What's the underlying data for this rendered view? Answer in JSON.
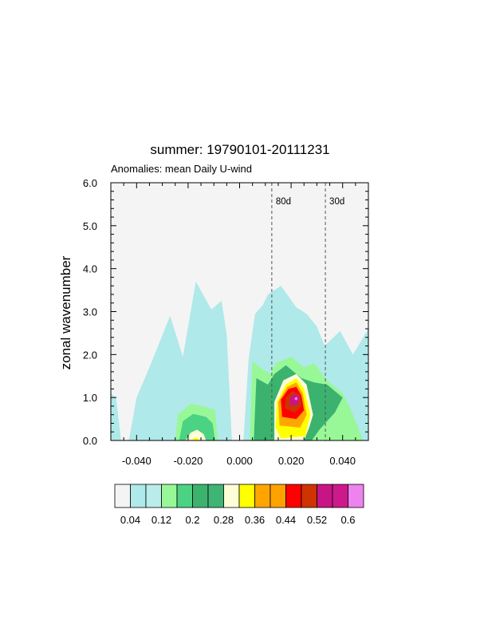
{
  "chart_data": {
    "type": "heatmap",
    "title": "summer: 19790101-20111231",
    "subtitle": "Anomalies: mean Daily U-wind",
    "xlabel": "",
    "ylabel": "zonal wavenumber",
    "xlim": [
      -0.05,
      0.05
    ],
    "ylim": [
      0,
      6
    ],
    "x_ticks": [
      {
        "value": -0.04,
        "label": "-0.040"
      },
      {
        "value": -0.02,
        "label": "-0.020"
      },
      {
        "value": 0.0,
        "label": "0.000"
      },
      {
        "value": 0.02,
        "label": "0.020"
      },
      {
        "value": 0.04,
        "label": "0.040"
      }
    ],
    "y_ticks": [
      {
        "value": 0,
        "label": "0.0"
      },
      {
        "value": 1,
        "label": "1.0"
      },
      {
        "value": 2,
        "label": "2.0"
      },
      {
        "value": 3,
        "label": "3.0"
      },
      {
        "value": 4,
        "label": "4.0"
      },
      {
        "value": 5,
        "label": "5.0"
      },
      {
        "value": 6,
        "label": "6.0"
      }
    ],
    "background_color": "#f4f4f4",
    "period_lines": [
      {
        "label": "80d",
        "frequency": 0.0125
      },
      {
        "label": "30d",
        "frequency": 0.0333
      }
    ],
    "contour_levels": [
      0.04,
      0.08,
      0.12,
      0.16,
      0.2,
      0.24,
      0.28,
      0.32,
      0.36,
      0.4,
      0.44,
      0.48,
      0.52,
      0.56,
      0.6
    ],
    "colorbar": {
      "colors": [
        "#f4f4f4",
        "#afe9e9",
        "#b9eceb",
        "#98f898",
        "#4bd283",
        "#3bb36f",
        "#3fb474",
        "#fdfed7",
        "#ffff00",
        "#ffa500",
        "#ffa200",
        "#ff0000",
        "#cf3300",
        "#c71585",
        "#cd1a8b",
        "#ee82ee"
      ],
      "labels": [
        {
          "after_index": 0,
          "text": "0.04"
        },
        {
          "after_index": 2,
          "text": "0.12"
        },
        {
          "after_index": 4,
          "text": "0.2"
        },
        {
          "after_index": 6,
          "text": "0.28"
        },
        {
          "after_index": 8,
          "text": "0.36"
        },
        {
          "after_index": 10,
          "text": "0.44"
        },
        {
          "after_index": 12,
          "text": "0.52"
        },
        {
          "after_index": 14,
          "text": "0.6"
        }
      ]
    },
    "regions": [
      {
        "level": 1,
        "points": [
          [
            -0.05,
            1.1
          ],
          [
            -0.048,
            1.0
          ],
          [
            -0.046,
            0.0
          ],
          [
            -0.05,
            0.0
          ]
        ]
      },
      {
        "level": 1,
        "points": [
          [
            -0.043,
            0.0
          ],
          [
            -0.04,
            1.0
          ],
          [
            -0.035,
            1.7
          ],
          [
            -0.031,
            2.3
          ],
          [
            -0.027,
            2.9
          ],
          [
            -0.022,
            1.95
          ],
          [
            -0.017,
            3.7
          ],
          [
            -0.011,
            3.05
          ],
          [
            -0.007,
            3.25
          ],
          [
            -0.005,
            2.45
          ],
          [
            -0.003,
            0.0
          ]
        ]
      },
      {
        "level": 1,
        "points": [
          [
            0.0015,
            0.0
          ],
          [
            0.0035,
            1.9
          ],
          [
            0.006,
            2.95
          ],
          [
            0.009,
            3.15
          ],
          [
            0.011,
            3.4
          ],
          [
            0.016,
            3.6
          ],
          [
            0.022,
            3.1
          ],
          [
            0.026,
            2.95
          ],
          [
            0.03,
            2.65
          ],
          [
            0.033,
            2.2
          ],
          [
            0.039,
            2.55
          ],
          [
            0.044,
            2.0
          ],
          [
            0.05,
            2.6
          ],
          [
            0.05,
            0.0
          ]
        ]
      },
      {
        "level": 3,
        "points": [
          [
            -0.025,
            0.0
          ],
          [
            -0.024,
            0.6
          ],
          [
            -0.019,
            0.85
          ],
          [
            -0.014,
            0.8
          ],
          [
            -0.0095,
            0.7
          ],
          [
            -0.0085,
            0.0
          ]
        ]
      },
      {
        "level": 4,
        "points": [
          [
            -0.0235,
            0.0
          ],
          [
            -0.022,
            0.45
          ],
          [
            -0.018,
            0.62
          ],
          [
            -0.013,
            0.55
          ],
          [
            -0.0105,
            0.4
          ],
          [
            -0.0095,
            0.0
          ]
        ]
      },
      {
        "level": 7,
        "points": [
          [
            -0.021,
            0.0
          ],
          [
            -0.019,
            0.18
          ],
          [
            -0.0165,
            0.25
          ],
          [
            -0.014,
            0.15
          ],
          [
            -0.013,
            0.0
          ]
        ]
      },
      {
        "level": 8,
        "points": [
          [
            -0.0185,
            0.0
          ],
          [
            -0.017,
            0.08
          ],
          [
            -0.0155,
            0.0
          ]
        ]
      },
      {
        "level": 3,
        "points": [
          [
            0.004,
            0.0
          ],
          [
            0.005,
            1.85
          ],
          [
            0.008,
            1.7
          ],
          [
            0.012,
            1.55
          ],
          [
            0.014,
            1.8
          ],
          [
            0.02,
            1.95
          ],
          [
            0.025,
            1.7
          ],
          [
            0.029,
            1.8
          ],
          [
            0.034,
            1.4
          ],
          [
            0.04,
            1.1
          ],
          [
            0.044,
            0.6
          ],
          [
            0.048,
            0.0
          ]
        ]
      },
      {
        "level": 5,
        "points": [
          [
            0.0055,
            0.0
          ],
          [
            0.0065,
            1.45
          ],
          [
            0.011,
            1.3
          ],
          [
            0.0135,
            1.55
          ],
          [
            0.018,
            1.75
          ],
          [
            0.024,
            1.45
          ],
          [
            0.029,
            1.35
          ],
          [
            0.034,
            1.3
          ],
          [
            0.04,
            1.0
          ],
          [
            0.037,
            0.65
          ],
          [
            0.031,
            0.25
          ],
          [
            0.028,
            0.0
          ]
        ]
      },
      {
        "level": 7,
        "points": [
          [
            0.0135,
            0.0
          ],
          [
            0.0135,
            0.9
          ],
          [
            0.017,
            1.4
          ],
          [
            0.022,
            1.55
          ],
          [
            0.026,
            1.3
          ],
          [
            0.0285,
            0.6
          ],
          [
            0.027,
            0.3
          ],
          [
            0.025,
            0.0
          ]
        ]
      },
      {
        "level": 8,
        "points": [
          [
            0.014,
            0.3
          ],
          [
            0.0145,
            0.9
          ],
          [
            0.018,
            1.3
          ],
          [
            0.022,
            1.45
          ],
          [
            0.025,
            1.2
          ],
          [
            0.0275,
            0.6
          ],
          [
            0.0255,
            0.1
          ],
          [
            0.016,
            0.05
          ]
        ]
      },
      {
        "level": 9,
        "points": [
          [
            0.0155,
            0.35
          ],
          [
            0.015,
            0.9
          ],
          [
            0.0185,
            1.25
          ],
          [
            0.022,
            1.35
          ],
          [
            0.0245,
            1.1
          ],
          [
            0.026,
            0.6
          ],
          [
            0.0235,
            0.3
          ]
        ]
      },
      {
        "level": 11,
        "points": [
          [
            0.0165,
            0.55
          ],
          [
            0.016,
            0.95
          ],
          [
            0.019,
            1.2
          ],
          [
            0.022,
            1.25
          ],
          [
            0.024,
            1.05
          ],
          [
            0.025,
            0.7
          ],
          [
            0.022,
            0.5
          ]
        ]
      },
      {
        "level": 12,
        "points": [
          [
            0.0175,
            0.75
          ],
          [
            0.018,
            1.0
          ],
          [
            0.0205,
            1.15
          ],
          [
            0.0235,
            1.05
          ],
          [
            0.024,
            0.8
          ],
          [
            0.0215,
            0.65
          ]
        ]
      },
      {
        "level": 13,
        "points": [
          [
            0.0195,
            0.82
          ],
          [
            0.0195,
            1.0
          ],
          [
            0.0215,
            1.1
          ],
          [
            0.0235,
            1.0
          ],
          [
            0.0225,
            0.82
          ]
        ]
      },
      {
        "level": 15,
        "points": [
          [
            0.0212,
            0.97
          ],
          [
            0.022,
            1.02
          ],
          [
            0.0226,
            0.97
          ],
          [
            0.022,
            0.93
          ]
        ]
      }
    ]
  }
}
